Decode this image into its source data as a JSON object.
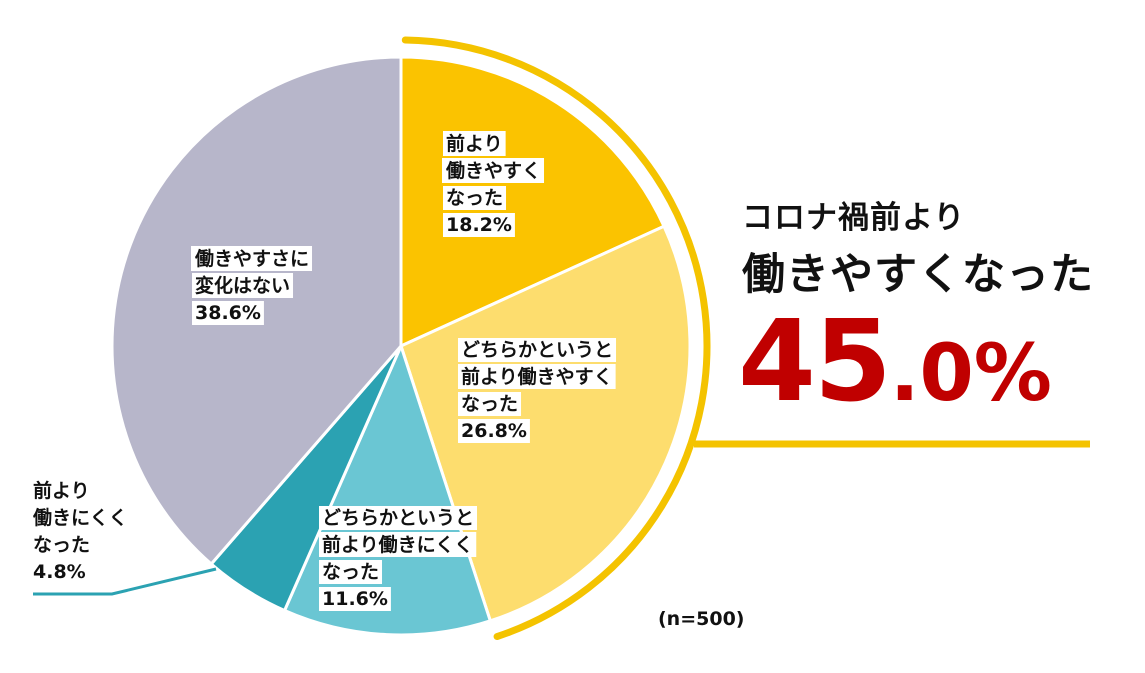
{
  "chart_data": {
    "type": "pie",
    "slices": [
      {
        "name": "前より\n働きやすく\nなった",
        "value": 18.2,
        "label": "18.2%",
        "color": "#FBC300"
      },
      {
        "name": "どちらかというと\n前より働きやすく\nなった",
        "value": 26.8,
        "label": "26.8%",
        "color": "#FDDD6E"
      },
      {
        "name": "どちらかというと\n前より働きにくく\nなった",
        "value": 11.6,
        "label": "11.6%",
        "color": "#6AC6D3"
      },
      {
        "name": "前より\n働きにくく\nなった",
        "value": 4.8,
        "label": "4.8%",
        "color": "#2BA2B2"
      },
      {
        "name": "働きやすさに\n変化はない",
        "value": 38.6,
        "label": "38.6%",
        "color": "#B7B6CA"
      }
    ],
    "start_angle_deg": 0,
    "direction": "clockwise",
    "sample_size": "(n=500)"
  },
  "callout": {
    "line1": "コロナ禍前より",
    "line2": "働きやすくなった",
    "value_main": "45",
    "value_rest": ".0%",
    "value_color": "#C00000",
    "accent_color": "#F4C300",
    "leader_color": "#2BA2B2"
  }
}
